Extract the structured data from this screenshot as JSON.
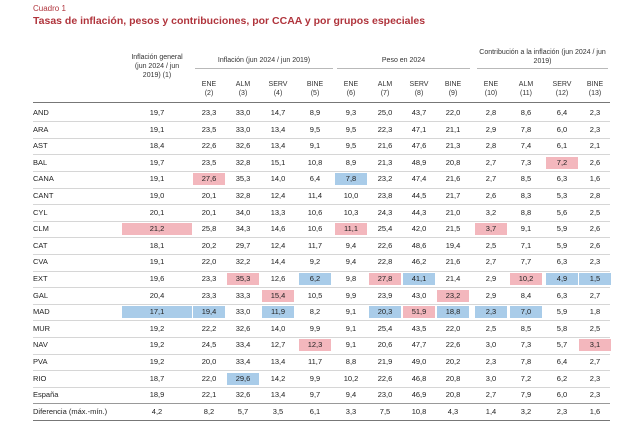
{
  "caption": {
    "label": "Cuadro 1",
    "title": "Tasas de inflación, pesos y contribuciones, por CCAA y por grupos especiales"
  },
  "groups": {
    "general": "Inflación general (jun 2024 / jun 2019) (1)",
    "inflacion": "Inflación (jun 2024 / jun 2019)",
    "peso": "Peso en 2024",
    "contribucion": "Contribución a la inflación (jun 2024 / jun 2019)"
  },
  "subheaders": [
    {
      "name": "ENE",
      "num": "(2)"
    },
    {
      "name": "ALM",
      "num": "(3)"
    },
    {
      "name": "SERV",
      "num": "(4)"
    },
    {
      "name": "BINE",
      "num": "(5)"
    },
    {
      "name": "ENE",
      "num": "(6)"
    },
    {
      "name": "ALM",
      "num": "(7)"
    },
    {
      "name": "SERV",
      "num": "(8)"
    },
    {
      "name": "BINE",
      "num": "(9)"
    },
    {
      "name": "ENE",
      "num": "(10)"
    },
    {
      "name": "ALM",
      "num": "(11)"
    },
    {
      "name": "SERV",
      "num": "(12)"
    },
    {
      "name": "BINE",
      "num": "(13)"
    }
  ],
  "rows": [
    {
      "label": "AND",
      "values": [
        "19,7",
        "23,3",
        "33,0",
        "14,7",
        "8,9",
        "9,3",
        "25,0",
        "43,7",
        "22,0",
        "2,8",
        "8,6",
        "6,4",
        "2,3"
      ]
    },
    {
      "label": "ARA",
      "values": [
        "19,1",
        "23,5",
        "33,0",
        "13,4",
        "9,5",
        "9,5",
        "22,3",
        "47,1",
        "21,1",
        "2,9",
        "7,8",
        "6,0",
        "2,3"
      ]
    },
    {
      "label": "AST",
      "values": [
        "18,4",
        "22,6",
        "32,6",
        "13,4",
        "9,1",
        "9,5",
        "21,6",
        "47,6",
        "21,3",
        "2,8",
        "7,4",
        "6,1",
        "2,1"
      ]
    },
    {
      "label": "BAL",
      "values": [
        "19,7",
        "23,5",
        "32,8",
        "15,1",
        "10,8",
        "8,9",
        "21,3",
        "48,9",
        "20,8",
        "2,7",
        "7,3",
        "7,2",
        "2,6"
      ]
    },
    {
      "label": "CANA",
      "values": [
        "19,1",
        "27,6",
        "35,3",
        "14,0",
        "6,4",
        "7,8",
        "23,2",
        "47,4",
        "21,6",
        "2,7",
        "8,5",
        "6,3",
        "1,6"
      ]
    },
    {
      "label": "CANT",
      "values": [
        "19,0",
        "20,1",
        "32,8",
        "12,4",
        "11,4",
        "10,0",
        "23,8",
        "44,5",
        "21,7",
        "2,6",
        "8,3",
        "5,3",
        "2,8"
      ]
    },
    {
      "label": "CYL",
      "values": [
        "20,1",
        "20,1",
        "34,0",
        "13,3",
        "10,6",
        "10,3",
        "24,3",
        "44,3",
        "21,0",
        "3,2",
        "8,8",
        "5,6",
        "2,5"
      ]
    },
    {
      "label": "CLM",
      "values": [
        "21,2",
        "25,8",
        "34,3",
        "14,6",
        "10,6",
        "11,1",
        "25,4",
        "42,0",
        "21,5",
        "3,7",
        "9,1",
        "5,9",
        "2,6"
      ]
    },
    {
      "label": "CAT",
      "values": [
        "18,1",
        "20,2",
        "29,7",
        "12,4",
        "11,7",
        "9,4",
        "22,6",
        "48,6",
        "19,4",
        "2,5",
        "7,1",
        "5,9",
        "2,6"
      ]
    },
    {
      "label": "CVA",
      "values": [
        "19,1",
        "22,0",
        "32,2",
        "14,4",
        "9,2",
        "9,4",
        "22,8",
        "46,2",
        "21,6",
        "2,7",
        "7,7",
        "6,3",
        "2,3"
      ]
    },
    {
      "label": "EXT",
      "values": [
        "19,6",
        "23,3",
        "35,3",
        "12,6",
        "6,2",
        "9,8",
        "27,8",
        "41,1",
        "21,4",
        "2,9",
        "10,2",
        "4,9",
        "1,5"
      ]
    },
    {
      "label": "GAL",
      "values": [
        "20,4",
        "23,3",
        "33,3",
        "15,4",
        "10,5",
        "9,9",
        "23,9",
        "43,0",
        "23,2",
        "2,9",
        "8,4",
        "6,3",
        "2,7"
      ]
    },
    {
      "label": "MAD",
      "values": [
        "17,1",
        "19,4",
        "33,0",
        "11,9",
        "8,2",
        "9,1",
        "20,3",
        "51,9",
        "18,8",
        "2,3",
        "7,0",
        "5,9",
        "1,8"
      ]
    },
    {
      "label": "MUR",
      "values": [
        "19,2",
        "22,2",
        "32,6",
        "14,0",
        "9,9",
        "9,1",
        "25,4",
        "43,5",
        "22,0",
        "2,5",
        "8,5",
        "5,8",
        "2,5"
      ]
    },
    {
      "label": "NAV",
      "values": [
        "19,2",
        "24,5",
        "33,4",
        "12,7",
        "12,3",
        "9,1",
        "20,6",
        "47,7",
        "22,6",
        "3,0",
        "7,3",
        "5,7",
        "3,1"
      ]
    },
    {
      "label": "PVA",
      "values": [
        "19,2",
        "20,0",
        "33,4",
        "13,4",
        "11,7",
        "8,8",
        "21,9",
        "49,0",
        "20,2",
        "2,3",
        "7,8",
        "6,4",
        "2,7"
      ]
    },
    {
      "label": "RIO",
      "values": [
        "18,7",
        "22,0",
        "29,6",
        "14,2",
        "9,9",
        "10,2",
        "22,6",
        "46,8",
        "20,8",
        "3,0",
        "7,2",
        "6,2",
        "2,3"
      ]
    },
    {
      "label": "España",
      "values": [
        "18,9",
        "22,1",
        "32,6",
        "13,4",
        "9,7",
        "9,4",
        "23,0",
        "46,9",
        "20,8",
        "2,7",
        "7,9",
        "6,0",
        "2,3"
      ]
    },
    {
      "label": "Diferencia (máx.-mín.)",
      "values": [
        "4,2",
        "8,2",
        "5,7",
        "3,5",
        "6,1",
        "3,3",
        "7,5",
        "10,8",
        "4,3",
        "1,4",
        "3,2",
        "2,3",
        "1,6"
      ]
    }
  ],
  "highlights": [
    {
      "row": 3,
      "col": 11,
      "color": "red"
    },
    {
      "row": 4,
      "col": 1,
      "color": "red"
    },
    {
      "row": 4,
      "col": 5,
      "color": "blue"
    },
    {
      "row": 7,
      "col": 0,
      "color": "red"
    },
    {
      "row": 7,
      "col": 5,
      "color": "red"
    },
    {
      "row": 7,
      "col": 9,
      "color": "red"
    },
    {
      "row": 10,
      "col": 2,
      "color": "red"
    },
    {
      "row": 10,
      "col": 4,
      "color": "blue"
    },
    {
      "row": 10,
      "col": 6,
      "color": "red"
    },
    {
      "row": 10,
      "col": 7,
      "color": "blue"
    },
    {
      "row": 10,
      "col": 10,
      "color": "red"
    },
    {
      "row": 10,
      "col": 11,
      "color": "blue"
    },
    {
      "row": 10,
      "col": 12,
      "color": "blue"
    },
    {
      "row": 11,
      "col": 3,
      "color": "red"
    },
    {
      "row": 11,
      "col": 8,
      "color": "red"
    },
    {
      "row": 12,
      "col": 0,
      "color": "blue"
    },
    {
      "row": 12,
      "col": 1,
      "color": "blue"
    },
    {
      "row": 12,
      "col": 3,
      "color": "blue"
    },
    {
      "row": 12,
      "col": 6,
      "color": "blue"
    },
    {
      "row": 12,
      "col": 7,
      "color": "red"
    },
    {
      "row": 12,
      "col": 8,
      "color": "blue"
    },
    {
      "row": 12,
      "col": 9,
      "color": "blue"
    },
    {
      "row": 12,
      "col": 10,
      "color": "blue"
    },
    {
      "row": 14,
      "col": 4,
      "color": "red"
    },
    {
      "row": 14,
      "col": 12,
      "color": "red"
    },
    {
      "row": 16,
      "col": 2,
      "color": "blue"
    }
  ],
  "colors": {
    "red": "#f3b7bd",
    "blue": "#a9cce9",
    "accent": "#b0343c"
  }
}
